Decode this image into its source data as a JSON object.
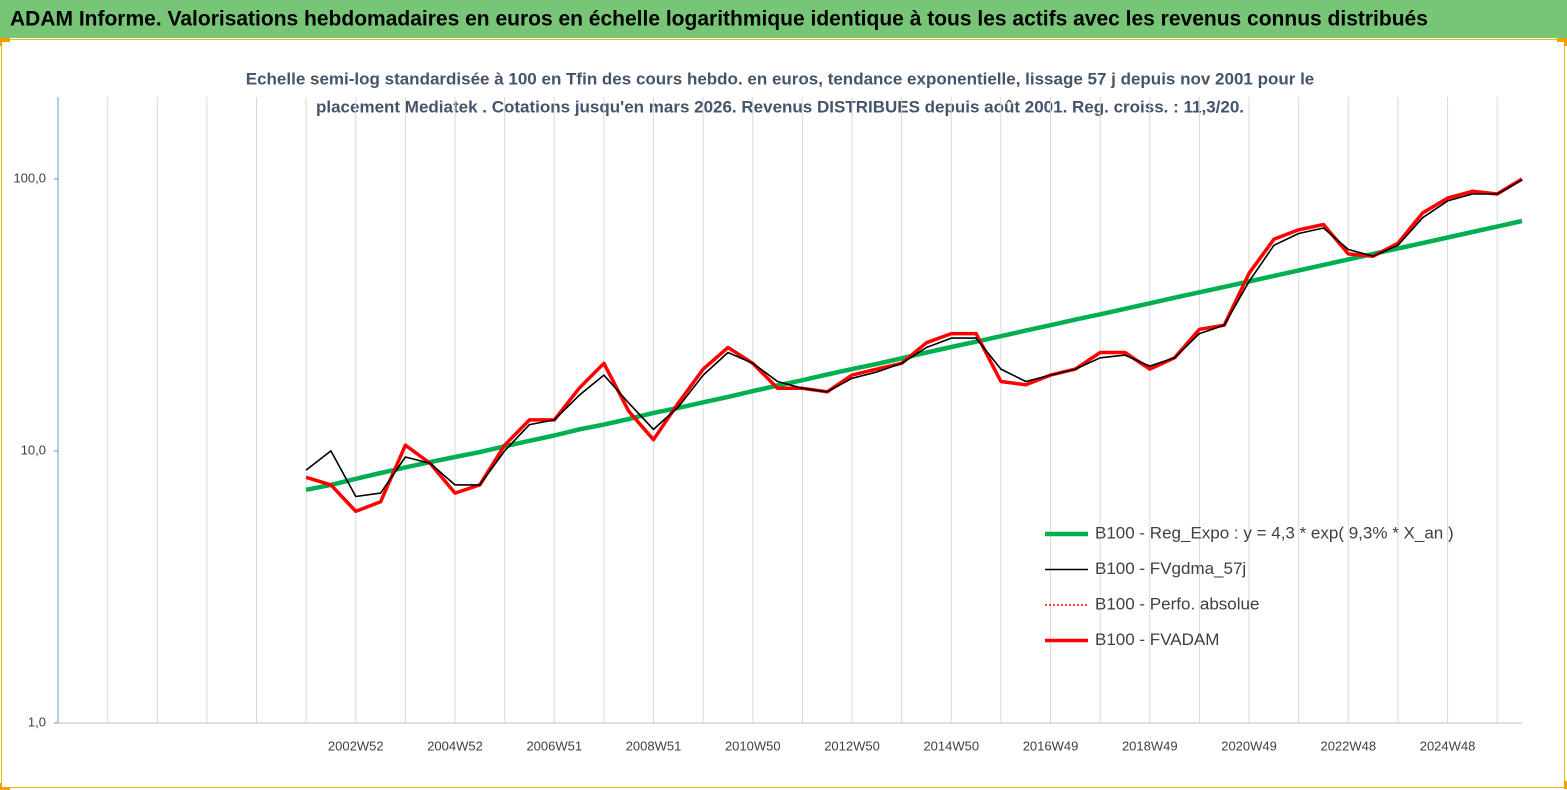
{
  "chart_data": {
    "type": "line",
    "title": "ADAM Informe. Valorisations hebdomadaires en euros en échelle logarithmique identique à tous les actifs avec les revenus connus distribués",
    "subtitle": [
      "Echelle semi-log standardisée à 100 en Tfin des cours hebdo. en euros, tendance exponentielle, lissage 57 j depuis nov 2001 pour le",
      "placement Mediatek . Cotations jusqu'en mars 2026. Revenus DISTRIBUES depuis août 2001. Reg. croiss. : 11,3/20."
    ],
    "categories": [
      null,
      null,
      null,
      null,
      null,
      null,
      null,
      null,
      null,
      null,
      null,
      null,
      "2002W52",
      null,
      null,
      null,
      "2004W52",
      null,
      null,
      null,
      "2006W51",
      null,
      null,
      null,
      "2008W51",
      null,
      null,
      null,
      "2010W50",
      null,
      null,
      null,
      "2012W50",
      null,
      null,
      null,
      "2014W50",
      null,
      null,
      null,
      "2016W49",
      null,
      null,
      null,
      "2018W49",
      null,
      null,
      null,
      "2020W49",
      null,
      null,
      null,
      "2022W48",
      null,
      null,
      null,
      "2024W48",
      null,
      null,
      null
    ],
    "series": [
      {
        "name": "B100 - Reg_Expo : y = 4,3 * exp( 9,3% *  X_an )",
        "color": "#00b050",
        "style": "solid",
        "values": [
          null,
          null,
          null,
          null,
          null,
          null,
          null,
          null,
          null,
          null,
          7.2,
          7.5,
          7.9,
          8.3,
          8.7,
          9.1,
          9.5,
          9.9,
          10.4,
          10.9,
          11.4,
          12.0,
          12.5,
          13.1,
          13.8,
          14.4,
          15.1,
          15.8,
          16.6,
          17.4,
          18.2,
          19.1,
          20.0,
          20.9,
          21.9,
          23.0,
          24.1,
          25.2,
          26.4,
          27.7,
          29.0,
          30.4,
          31.8,
          33.3,
          34.9,
          36.6,
          38.3,
          40.1,
          42.0,
          44.0,
          46.1,
          48.3,
          50.6,
          53.0,
          55.5,
          58.1,
          60.9,
          63.8,
          66.8,
          70.0
        ]
      },
      {
        "name": "B100 - FVgdma_57j",
        "color": "#000000",
        "style": "solid",
        "values": [
          null,
          null,
          null,
          null,
          null,
          null,
          null,
          null,
          null,
          null,
          8.5,
          10,
          6.8,
          7,
          9.5,
          9,
          7.5,
          7.5,
          10,
          12.5,
          13,
          16,
          19,
          15,
          12,
          14.5,
          19,
          23,
          21,
          18,
          17,
          16.5,
          18.5,
          19.5,
          21,
          24,
          26,
          26,
          20,
          18,
          19,
          20,
          22,
          22.5,
          20.5,
          22,
          27,
          29,
          42,
          57,
          63,
          66,
          55,
          52,
          57,
          72,
          83,
          88,
          88,
          99
        ]
      },
      {
        "name": "B100 - Perfo. absolue",
        "color": "#ff0000",
        "style": "dotted",
        "values": [
          null,
          null,
          null,
          null,
          null,
          null,
          null,
          null,
          null,
          null,
          8,
          7.5,
          6,
          6.5,
          10.5,
          9,
          7,
          7.5,
          10.5,
          13,
          13,
          17,
          21,
          14,
          11,
          15,
          20,
          24,
          21,
          17,
          17,
          16.5,
          19,
          20,
          21,
          25,
          27,
          27,
          18,
          17.5,
          19,
          20,
          23,
          23,
          20,
          22,
          28,
          29,
          45,
          60,
          65,
          68,
          53,
          52,
          58,
          75,
          85,
          90,
          88,
          100
        ]
      },
      {
        "name": "B100 - FVADAM",
        "color": "#ff0000",
        "style": "solid",
        "values": [
          null,
          null,
          null,
          null,
          null,
          null,
          null,
          null,
          null,
          null,
          8,
          7.5,
          6,
          6.5,
          10.5,
          9,
          7,
          7.5,
          10.5,
          13,
          13,
          17,
          21,
          14,
          11,
          15,
          20,
          24,
          21,
          17,
          17,
          16.5,
          19,
          20,
          21,
          25,
          27,
          27,
          18,
          17.5,
          19,
          20,
          23,
          23,
          20,
          22,
          28,
          29,
          45,
          60,
          65,
          68,
          53,
          52,
          58,
          75,
          85,
          90,
          88,
          100
        ]
      }
    ],
    "log_scale": true,
    "ylim": [
      1,
      200
    ],
    "yticks": [
      {
        "value": 1,
        "label": "1,0"
      },
      {
        "value": 10,
        "label": "10,0"
      },
      {
        "value": 100,
        "label": "100,0"
      }
    ],
    "legend": "lower right"
  }
}
